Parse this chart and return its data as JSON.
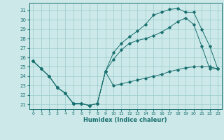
{
  "xlabel": "Humidex (Indice chaleur)",
  "bg_color": "#cce8e8",
  "grid_color": "#99cccc",
  "line_color": "#1a7070",
  "xlim": [
    -0.5,
    23.5
  ],
  "ylim": [
    20.5,
    31.8
  ],
  "yticks": [
    21,
    22,
    23,
    24,
    25,
    26,
    27,
    28,
    29,
    30,
    31
  ],
  "xticks": [
    0,
    1,
    2,
    3,
    4,
    5,
    6,
    7,
    8,
    9,
    10,
    11,
    12,
    13,
    14,
    15,
    16,
    17,
    18,
    19,
    20,
    21,
    22,
    23
  ],
  "line1_x": [
    0,
    1,
    2,
    3,
    4,
    5,
    6,
    7,
    8,
    9,
    10,
    11,
    12,
    13,
    14,
    15,
    16,
    17,
    18,
    19,
    20,
    21,
    22,
    23
  ],
  "line1_y": [
    25.6,
    24.8,
    24.0,
    22.8,
    22.2,
    21.1,
    21.1,
    20.9,
    21.1,
    24.5,
    23.0,
    23.2,
    23.4,
    23.6,
    23.8,
    24.0,
    24.2,
    24.5,
    24.7,
    24.9,
    25.0,
    25.0,
    25.0,
    24.8
  ],
  "line2_x": [
    0,
    1,
    2,
    3,
    4,
    5,
    6,
    7,
    8,
    9,
    10,
    11,
    12,
    13,
    14,
    15,
    16,
    17,
    18,
    19,
    20,
    21,
    22,
    23
  ],
  "line2_y": [
    25.6,
    24.8,
    24.0,
    22.8,
    22.2,
    21.1,
    21.1,
    20.9,
    21.1,
    24.5,
    25.8,
    26.8,
    27.5,
    27.8,
    28.0,
    28.3,
    28.7,
    29.2,
    29.8,
    30.2,
    29.5,
    27.2,
    24.8,
    24.8
  ],
  "line3_x": [
    0,
    1,
    2,
    3,
    4,
    5,
    6,
    7,
    8,
    9,
    10,
    11,
    12,
    13,
    14,
    15,
    16,
    17,
    18,
    19,
    20,
    21,
    22,
    23
  ],
  "line3_y": [
    25.6,
    24.8,
    24.0,
    22.8,
    22.2,
    21.1,
    21.1,
    20.9,
    21.1,
    24.5,
    26.5,
    27.5,
    28.2,
    28.8,
    29.5,
    30.5,
    30.8,
    31.1,
    31.2,
    30.8,
    30.8,
    29.0,
    27.2,
    24.8
  ]
}
